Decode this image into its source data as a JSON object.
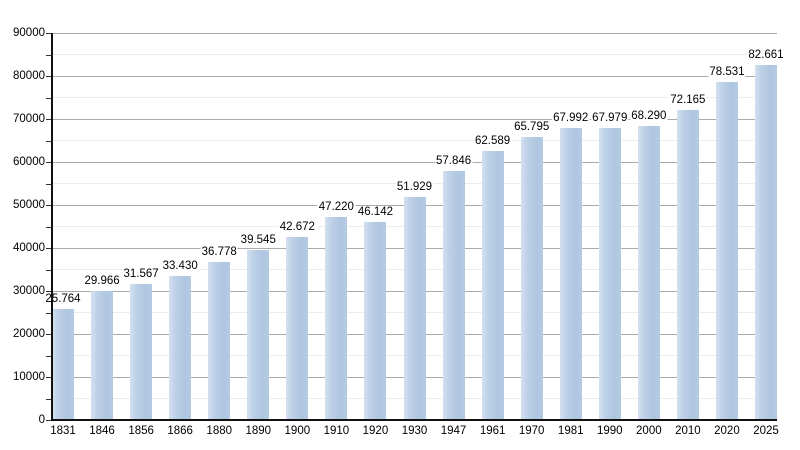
{
  "chart_data": {
    "type": "bar",
    "title": "",
    "xlabel": "",
    "ylabel": "",
    "categories": [
      "1831",
      "1846",
      "1856",
      "1866",
      "1880",
      "1890",
      "1900",
      "1910",
      "1920",
      "1930",
      "1947",
      "1961",
      "1970",
      "1981",
      "1990",
      "2000",
      "2010",
      "2020",
      "2025"
    ],
    "values": [
      25764,
      29966,
      31567,
      33430,
      36778,
      39545,
      42672,
      47220,
      46142,
      51929,
      57846,
      62589,
      65795,
      67992,
      67979,
      68290,
      72165,
      78531,
      82661
    ],
    "value_labels": [
      "25.764",
      "29.966",
      "31.567",
      "33.430",
      "36.778",
      "39.545",
      "42.672",
      "47.220",
      "46.142",
      "51.929",
      "57.846",
      "62.589",
      "65.795",
      "67.992",
      "67.979",
      "68.290",
      "72.165",
      "78.531",
      "82.661"
    ],
    "ylim": [
      0,
      90000
    ],
    "ytick_step": 10000,
    "minor_tick_step": 5000,
    "ytick_labels": [
      "0",
      "10000",
      "20000",
      "30000",
      "40000",
      "50000",
      "60000",
      "70000",
      "80000",
      "90000"
    ],
    "grid": "on",
    "legend": "none",
    "colors": {
      "bar_fill": "#aec6e0",
      "bar_fill_highlight": "#d3e0ef",
      "major_grid": "#ababab",
      "minor_grid": "#ececec",
      "axis": "#111111",
      "text": "#000000",
      "background": "#ffffff"
    }
  }
}
